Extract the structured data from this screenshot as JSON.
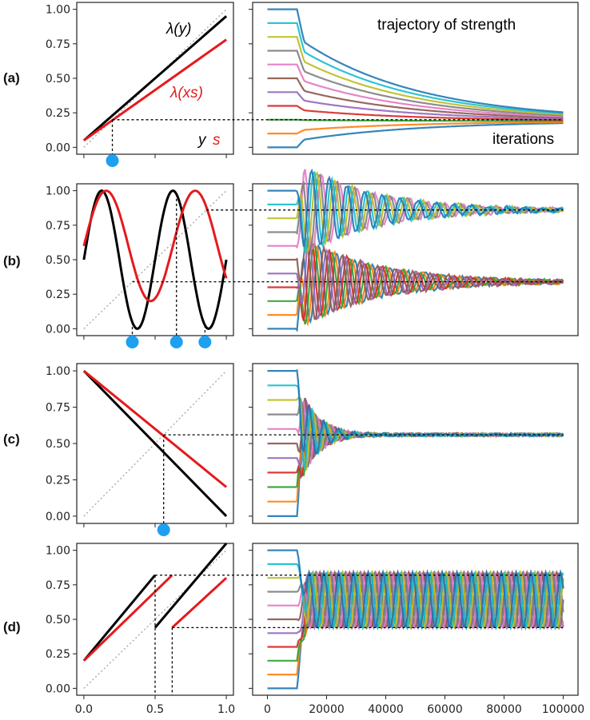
{
  "figure": {
    "right_annotation_title": "trajectory of strength",
    "right_annotation_xaxis": "iterations"
  },
  "chart_data": [
    {
      "panel": "(a)",
      "side": "left",
      "type": "line",
      "xlim": [
        -0.05,
        1.05
      ],
      "ylim": [
        -0.05,
        1.05
      ],
      "ytick_labels": [
        "0.00",
        "0.25",
        "0.50",
        "0.75",
        "1.00"
      ],
      "xtick_values": [
        0,
        0.5,
        1
      ],
      "annotations": [
        {
          "text": "λ(y)",
          "color": "#000000",
          "italic": true
        },
        {
          "text": "λ(xs)",
          "color": "#e41a1c",
          "italic": true
        },
        {
          "text": "y",
          "color": "#000000",
          "italic": true
        },
        {
          "text": "s",
          "color": "#e41a1c",
          "italic": true
        }
      ],
      "series": [
        {
          "name": "λ(y)",
          "color": "#000000",
          "x": [
            0,
            1
          ],
          "y": [
            0.05,
            0.95
          ]
        },
        {
          "name": "λ(xs)",
          "color": "#e41a1c",
          "x": [
            0,
            1
          ],
          "y": [
            0.05,
            0.78
          ]
        },
        {
          "name": "identity",
          "color": "#aaaaaa",
          "dotted": true,
          "x": [
            0,
            1
          ],
          "y": [
            0,
            1
          ]
        }
      ],
      "fixed_points": [
        0.2
      ],
      "guide_levels": [
        0.2
      ]
    },
    {
      "panel": "(a)",
      "side": "right",
      "type": "line",
      "xlim": [
        -5000,
        105000
      ],
      "ylim": [
        -0.05,
        1.05
      ],
      "converge": {
        "start": 10000,
        "decay": 40000,
        "targets": [
          0.19
        ],
        "mode": "smooth"
      },
      "guide_levels": [
        0.2
      ]
    },
    {
      "panel": "(b)",
      "side": "left",
      "type": "line",
      "xlim": [
        -0.05,
        1.05
      ],
      "ylim": [
        -0.05,
        1.05
      ],
      "ytick_labels": [
        "0.00",
        "0.25",
        "0.50",
        "0.75",
        "1.00"
      ],
      "xtick_values": [
        0,
        0.5,
        1
      ],
      "series": [
        {
          "name": "λ(y)",
          "color": "#000000",
          "func": "sine",
          "amp": 0.5,
          "offset": 0.5,
          "freq": 2.0
        },
        {
          "name": "λ(xs)",
          "color": "#e41a1c",
          "func": "sine",
          "amp": 0.4,
          "offset": 0.6,
          "freq": 1.6
        },
        {
          "name": "identity",
          "color": "#aaaaaa",
          "dotted": true,
          "x": [
            0,
            1
          ],
          "y": [
            0,
            1
          ]
        }
      ],
      "fixed_points": [
        0.34,
        0.65,
        0.85
      ],
      "guide_levels": [
        0.86,
        0.34
      ]
    },
    {
      "panel": "(b)",
      "side": "right",
      "type": "line",
      "xlim": [
        -5000,
        105000
      ],
      "ylim": [
        -0.05,
        1.05
      ],
      "converge": {
        "start": 10000,
        "decay": 25000,
        "targets": [
          0.86,
          0.34
        ],
        "mode": "oscillate",
        "amp": 0.35,
        "period": 6000
      },
      "guide_levels": [
        0.86,
        0.34
      ]
    },
    {
      "panel": "(c)",
      "side": "left",
      "type": "line",
      "xlim": [
        -0.05,
        1.05
      ],
      "ylim": [
        -0.05,
        1.05
      ],
      "ytick_labels": [
        "0.00",
        "0.25",
        "0.50",
        "0.75",
        "1.00"
      ],
      "xtick_values": [
        0,
        0.5,
        1
      ],
      "series": [
        {
          "name": "λ(y)",
          "color": "#000000",
          "x": [
            0,
            1
          ],
          "y": [
            1.0,
            0.0
          ]
        },
        {
          "name": "λ(xs)",
          "color": "#e41a1c",
          "x": [
            0,
            1
          ],
          "y": [
            1.0,
            0.2
          ]
        },
        {
          "name": "identity",
          "color": "#aaaaaa",
          "dotted": true,
          "x": [
            0,
            1
          ],
          "y": [
            0,
            1
          ]
        }
      ],
      "fixed_points": [
        0.56
      ],
      "guide_levels": [
        0.56
      ]
    },
    {
      "panel": "(c)",
      "side": "right",
      "type": "line",
      "xlim": [
        -5000,
        105000
      ],
      "ylim": [
        -0.05,
        1.05
      ],
      "converge": {
        "start": 10000,
        "decay": 6000,
        "targets": [
          0.56
        ],
        "mode": "oscillate",
        "amp": 0.4,
        "period": 5000
      },
      "guide_levels": [
        0.56
      ]
    },
    {
      "panel": "(d)",
      "side": "left",
      "type": "line",
      "xlim": [
        -0.05,
        1.05
      ],
      "ylim": [
        -0.05,
        1.05
      ],
      "ytick_labels": [
        "0.00",
        "0.25",
        "0.50",
        "0.75",
        "1.00"
      ],
      "xtick_labels": [
        "0.0",
        "0.5",
        "1.0"
      ],
      "xtick_values": [
        0,
        0.5,
        1
      ],
      "series": [
        {
          "name": "λ(y) part 1",
          "color": "#000000",
          "x": [
            0,
            0.5
          ],
          "y": [
            0.2,
            0.82
          ]
        },
        {
          "name": "λ(y) part 2",
          "color": "#000000",
          "x": [
            0.5,
            1.0
          ],
          "y": [
            0.44,
            1.05
          ]
        },
        {
          "name": "λ(xs) part 1",
          "color": "#e41a1c",
          "x": [
            0,
            0.62
          ],
          "y": [
            0.2,
            0.82
          ]
        },
        {
          "name": "λ(xs) part 2",
          "color": "#e41a1c",
          "x": [
            0.62,
            1.0
          ],
          "y": [
            0.44,
            0.8
          ]
        },
        {
          "name": "identity",
          "color": "#aaaaaa",
          "dotted": true,
          "x": [
            0,
            1
          ],
          "y": [
            0,
            1
          ]
        }
      ],
      "guide_levels": [
        0.82,
        0.44
      ],
      "guide_verticals": [
        0.5,
        0.62
      ]
    },
    {
      "panel": "(d)",
      "side": "right",
      "type": "line",
      "xlim": [
        -5000,
        105000
      ],
      "ylim": [
        -0.05,
        1.05
      ],
      "xtick_labels": [
        "0",
        "20000",
        "40000",
        "60000",
        "80000",
        "100000"
      ],
      "xtick_values": [
        0,
        20000,
        40000,
        60000,
        80000,
        100000
      ],
      "converge": {
        "start": 10000,
        "decay": 1000000,
        "targets": [
          0.64
        ],
        "mode": "cycle",
        "amp": 0.2,
        "period": 5000
      },
      "guide_levels": [
        0.82,
        0.44
      ]
    }
  ],
  "trajectory_colors": [
    "#1f77b4",
    "#ff7f0e",
    "#2ca02c",
    "#d62728",
    "#9467bd",
    "#8c564b",
    "#e377c2",
    "#7f7f7f",
    "#bcbd22",
    "#17becf",
    "#1f77b4"
  ]
}
